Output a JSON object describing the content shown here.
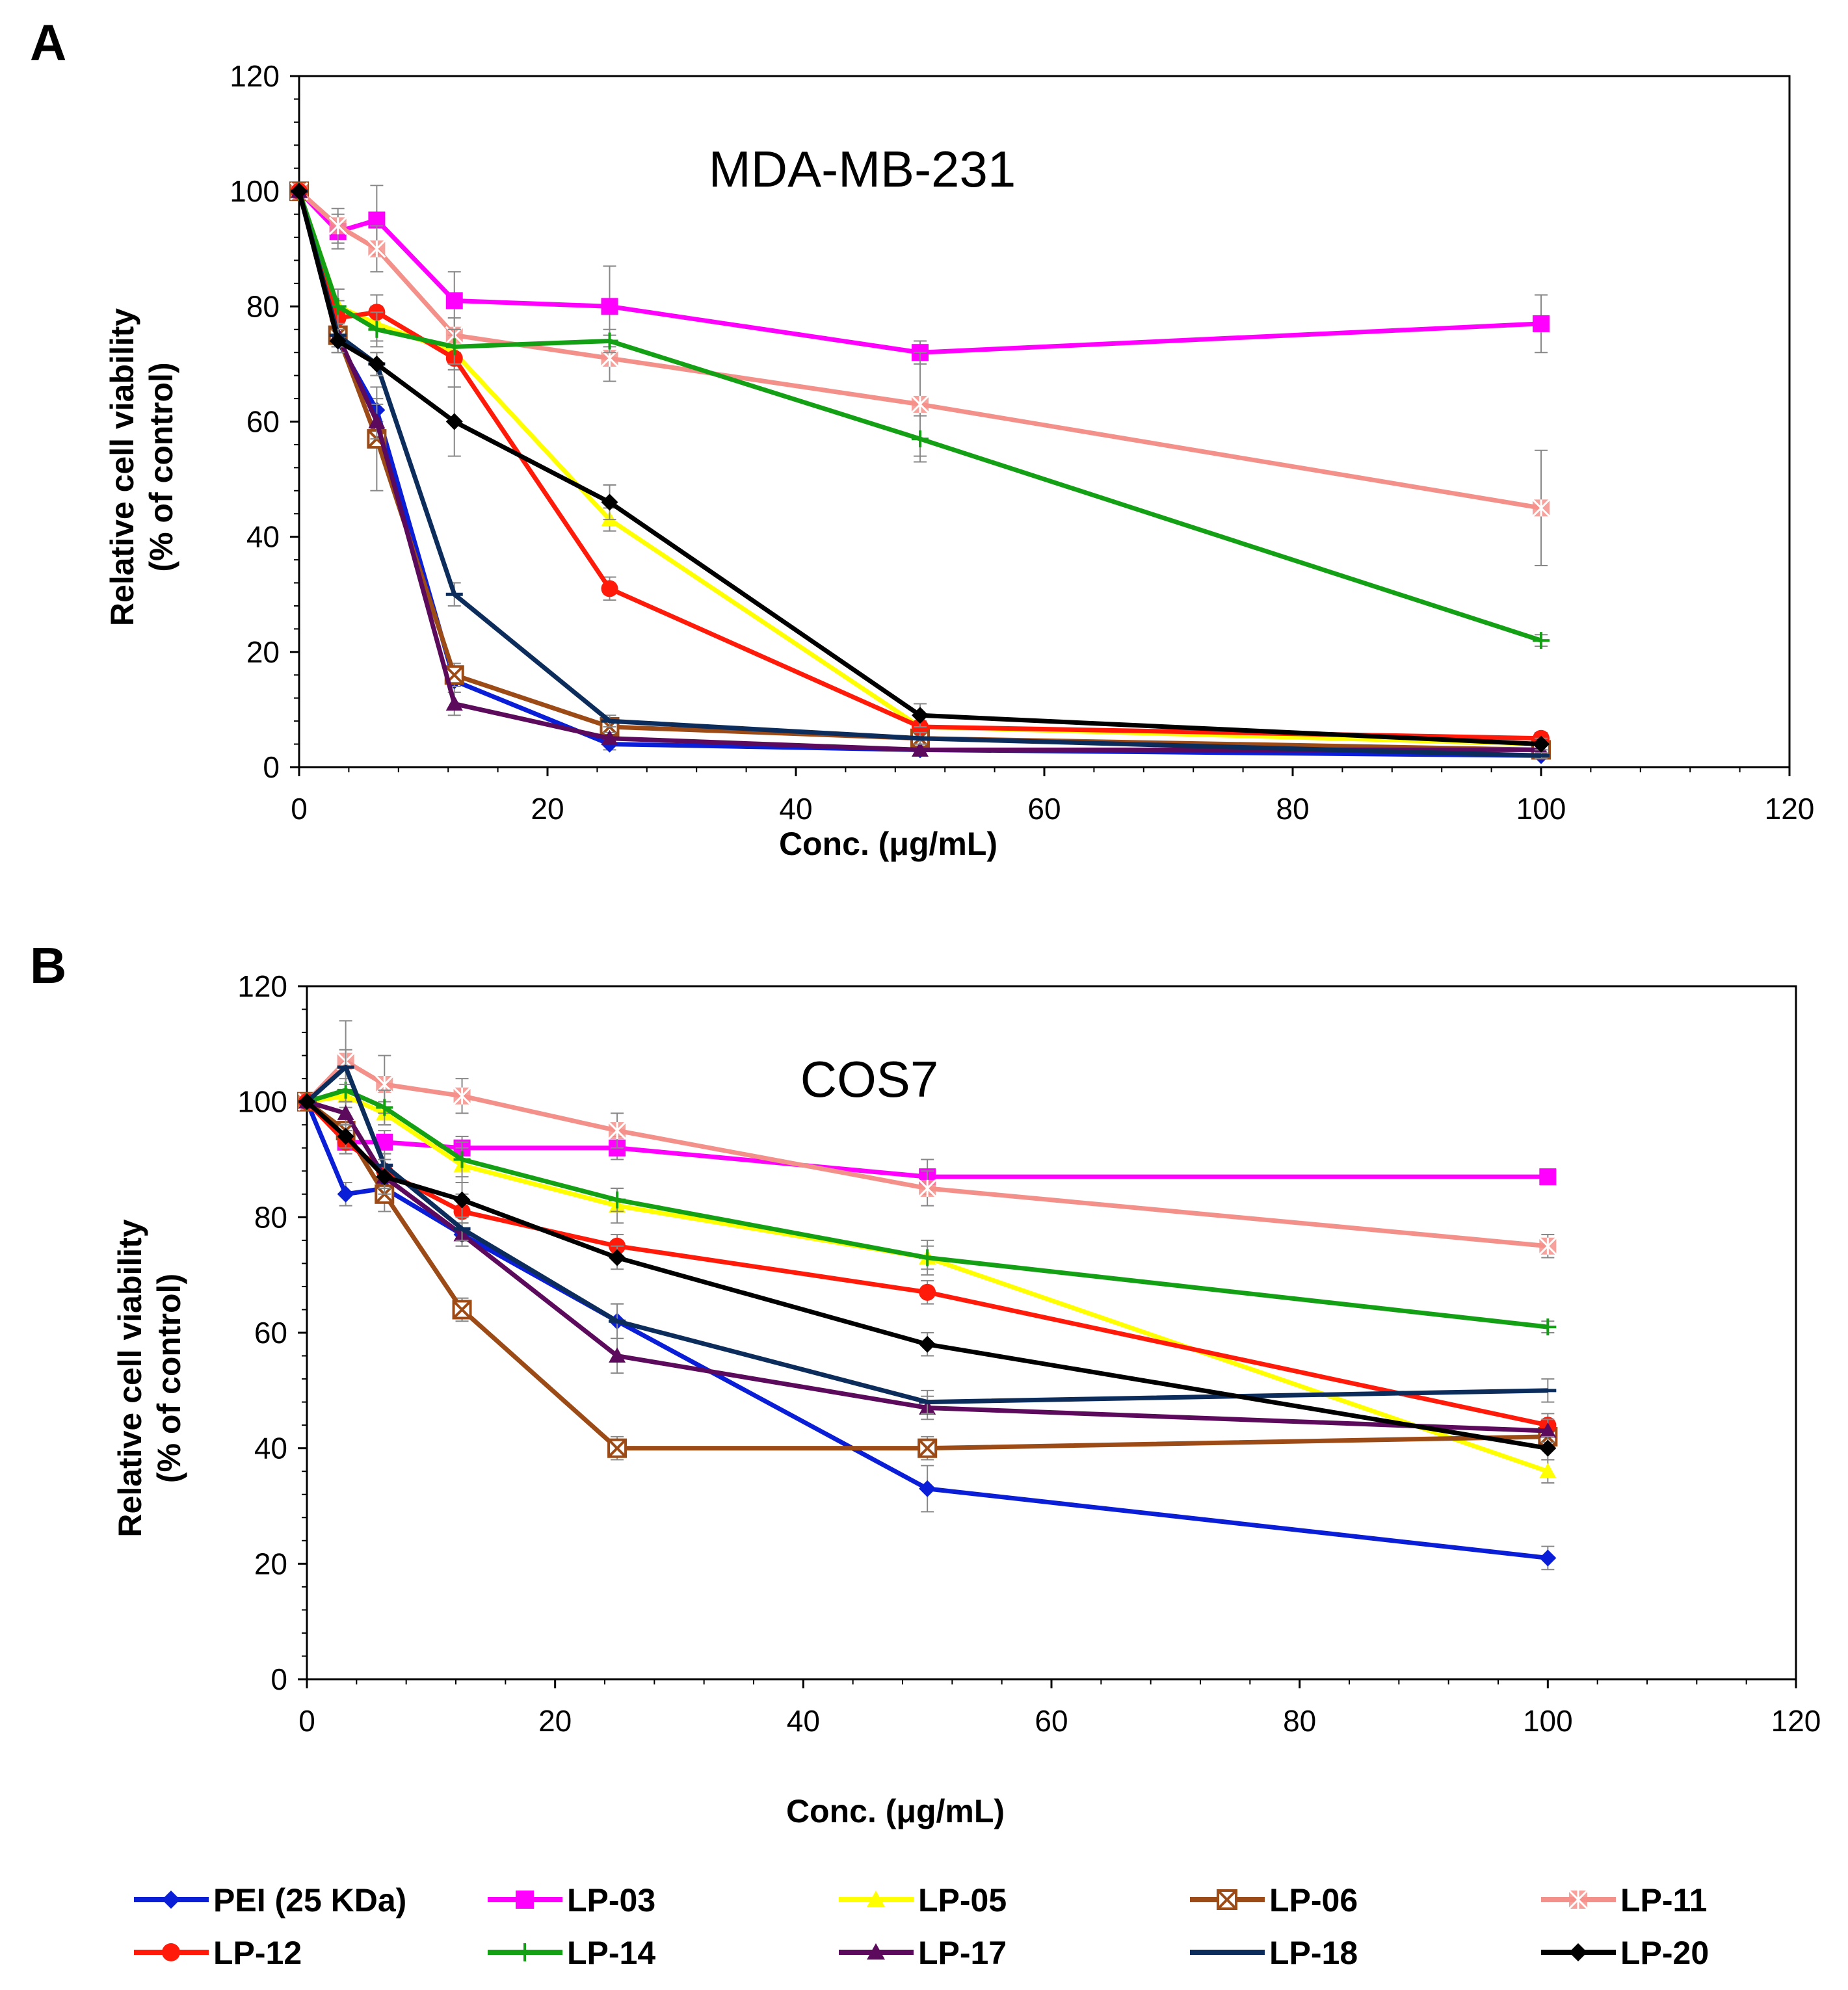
{
  "figure": {
    "panel_a_label": "A",
    "panel_b_label": "B"
  },
  "legend": [
    {
      "name": "PEI (25 KDa)",
      "color": "#0a1ed8",
      "marker": "diamond"
    },
    {
      "name": "LP-03",
      "color": "#ff00ff",
      "marker": "square"
    },
    {
      "name": "LP-05",
      "color": "#ffff00",
      "marker": "triangle"
    },
    {
      "name": "LP-06",
      "color": "#9c4a16",
      "marker": "x-square"
    },
    {
      "name": "LP-11",
      "color": "#f4908a",
      "marker": "asterisk"
    },
    {
      "name": "LP-12",
      "color": "#ff1a0a",
      "marker": "circle"
    },
    {
      "name": "LP-14",
      "color": "#14a014",
      "marker": "plus"
    },
    {
      "name": "LP-17",
      "color": "#5c0a5c",
      "marker": "triangle"
    },
    {
      "name": "LP-18",
      "color": "#0c2d5c",
      "marker": "dash"
    },
    {
      "name": "LP-20",
      "color": "#000000",
      "marker": "diamond"
    }
  ],
  "chart_data": [
    {
      "type": "line",
      "title": "MDA-MB-231",
      "xlabel": "Conc. (μg/mL)",
      "ylabel_line1": "Relative cell viability",
      "ylabel_line2": "(% of control)",
      "xlim": [
        0,
        120
      ],
      "ylim": [
        0,
        120
      ],
      "xticks": [
        0,
        20,
        40,
        60,
        80,
        100,
        120
      ],
      "yticks": [
        0,
        20,
        40,
        60,
        80,
        100,
        120
      ],
      "x": [
        0,
        3.125,
        6.25,
        12.5,
        25,
        50,
        100
      ],
      "series": [
        {
          "name": "PEI (25 KDa)",
          "values": [
            100,
            74,
            62,
            15,
            4,
            3,
            2
          ],
          "errors": [
            0,
            2,
            2,
            2,
            1,
            1,
            0.5
          ]
        },
        {
          "name": "LP-03",
          "values": [
            100,
            93,
            95,
            81,
            80,
            72,
            77
          ],
          "errors": [
            0,
            3,
            6,
            5,
            7,
            2,
            5
          ]
        },
        {
          "name": "LP-05",
          "values": [
            100,
            80,
            77,
            72,
            43,
            7,
            4
          ],
          "errors": [
            0,
            3,
            3,
            3,
            2,
            1,
            1
          ]
        },
        {
          "name": "LP-06",
          "values": [
            100,
            75,
            57,
            16,
            7,
            5,
            3
          ],
          "errors": [
            0,
            3,
            9,
            2,
            1,
            1,
            1
          ]
        },
        {
          "name": "LP-11",
          "values": [
            100,
            94,
            90,
            75,
            71,
            63,
            45
          ],
          "errors": [
            0,
            3,
            4,
            3,
            4,
            9,
            10
          ]
        },
        {
          "name": "LP-12",
          "values": [
            100,
            78,
            79,
            71,
            31,
            7,
            5
          ],
          "errors": [
            0,
            3,
            3,
            5,
            2,
            1,
            1
          ]
        },
        {
          "name": "LP-14",
          "values": [
            100,
            80,
            76,
            73,
            74,
            57,
            22
          ],
          "errors": [
            0,
            3,
            3,
            3,
            2,
            4,
            1
          ]
        },
        {
          "name": "LP-17",
          "values": [
            100,
            75,
            60,
            11,
            5,
            3,
            3
          ],
          "errors": [
            0,
            2,
            3,
            2,
            1,
            1,
            1
          ]
        },
        {
          "name": "LP-18",
          "values": [
            100,
            75,
            70,
            30,
            8,
            5,
            2
          ],
          "errors": [
            0,
            2,
            2,
            2,
            1,
            1,
            0.5
          ]
        },
        {
          "name": "LP-20",
          "values": [
            100,
            74,
            70,
            60,
            46,
            9,
            4
          ],
          "errors": [
            0,
            2,
            2,
            6,
            3,
            2,
            1
          ]
        }
      ]
    },
    {
      "type": "line",
      "title": "COS7",
      "xlabel": "Conc. (μg/mL)",
      "ylabel_line1": "Relative cell viability",
      "ylabel_line2": "(% of control)",
      "xlim": [
        0,
        120
      ],
      "ylim": [
        0,
        120
      ],
      "xticks": [
        0,
        20,
        40,
        60,
        80,
        100,
        120
      ],
      "yticks": [
        0,
        20,
        40,
        60,
        80,
        100,
        120
      ],
      "x": [
        0,
        3.125,
        6.25,
        12.5,
        25,
        50,
        100
      ],
      "series": [
        {
          "name": "PEI (25 KDa)",
          "values": [
            100,
            84,
            85,
            77,
            62,
            33,
            21
          ],
          "errors": [
            0,
            2,
            2,
            2,
            3,
            4,
            2
          ]
        },
        {
          "name": "LP-03",
          "values": [
            100,
            93,
            93,
            92,
            92,
            87,
            87
          ],
          "errors": [
            0,
            2,
            2,
            2,
            2,
            3,
            1
          ]
        },
        {
          "name": "LP-05",
          "values": [
            100,
            101,
            98,
            89,
            82,
            73,
            36
          ],
          "errors": [
            0,
            2,
            2,
            3,
            3,
            3,
            2
          ]
        },
        {
          "name": "LP-06",
          "values": [
            100,
            95,
            84,
            64,
            40,
            40,
            42
          ],
          "errors": [
            0,
            2,
            3,
            2,
            2,
            2,
            2
          ]
        },
        {
          "name": "LP-11",
          "values": [
            100,
            107,
            103,
            101,
            95,
            85,
            75
          ],
          "errors": [
            0,
            7,
            5,
            3,
            3,
            3,
            2
          ]
        },
        {
          "name": "LP-12",
          "values": [
            100,
            93,
            88,
            81,
            75,
            67,
            44
          ],
          "errors": [
            0,
            2,
            3,
            3,
            2,
            2,
            2
          ]
        },
        {
          "name": "LP-14",
          "values": [
            100,
            102,
            99,
            90,
            83,
            73,
            61
          ],
          "errors": [
            0,
            2,
            3,
            3,
            2,
            2,
            1
          ]
        },
        {
          "name": "LP-17",
          "values": [
            100,
            98,
            87,
            77,
            56,
            47,
            43
          ],
          "errors": [
            0,
            2,
            2,
            2,
            3,
            2,
            2
          ]
        },
        {
          "name": "LP-18",
          "values": [
            100,
            106,
            89,
            78,
            62,
            48,
            50
          ],
          "errors": [
            0,
            3,
            2,
            2,
            3,
            2,
            2
          ]
        },
        {
          "name": "LP-20",
          "values": [
            100,
            94,
            87,
            83,
            73,
            58,
            40
          ],
          "errors": [
            0,
            2,
            3,
            3,
            2,
            2,
            2
          ]
        }
      ]
    }
  ]
}
